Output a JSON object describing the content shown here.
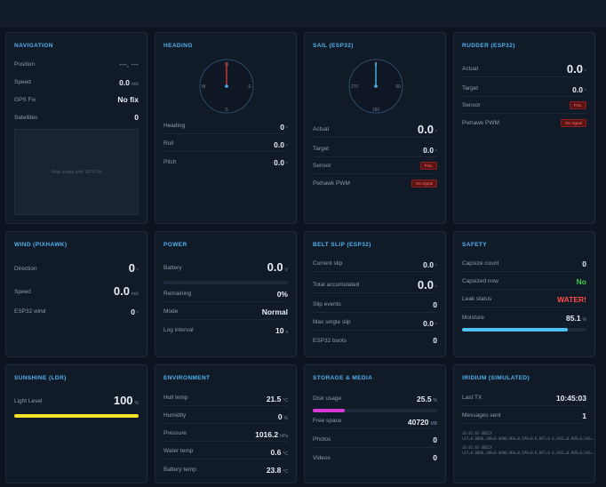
{
  "navigation": {
    "title": "NAVIGATION",
    "rows": [
      {
        "label": "Position",
        "value": "---, ---"
      },
      {
        "label": "Speed",
        "value": "0.0",
        "unit": "m/s"
      },
      {
        "label": "GPS Fix",
        "value": "No fix"
      },
      {
        "label": "Satellites",
        "value": "0"
      }
    ],
    "map_placeholder": "Map loads with GPS fix"
  },
  "heading": {
    "title": "HEADING",
    "compass": {
      "n": "N",
      "e": "E",
      "s": "S",
      "w": "W",
      "needle_deg": 0
    },
    "rows": [
      {
        "label": "Heading",
        "value": "0",
        "unit": "°"
      },
      {
        "label": "Roll",
        "value": "0.0",
        "unit": "°"
      },
      {
        "label": "Pitch",
        "value": "0.0",
        "unit": "°"
      }
    ]
  },
  "sail": {
    "title": "SAIL (ESP32)",
    "compass": {
      "top": "0",
      "right": "90",
      "bottom": "180",
      "left": "270",
      "needle_deg": 0
    },
    "rows": [
      {
        "label": "Actual",
        "value": "0.0",
        "unit": "°"
      },
      {
        "label": "Target",
        "value": "0.0",
        "unit": "°"
      },
      {
        "label": "Sensor",
        "badge": "FAIL"
      },
      {
        "label": "Pixhawk PWM",
        "badge": "No signal"
      }
    ]
  },
  "rudder": {
    "title": "RUDDER (ESP32)",
    "rows": [
      {
        "label": "Actual",
        "value": "0.0",
        "unit": "°"
      },
      {
        "label": "Target",
        "value": "0.0",
        "unit": "°"
      },
      {
        "label": "Sensor",
        "badge": "FAIL"
      },
      {
        "label": "Pixhawk PWM",
        "badge": "No signal"
      }
    ]
  },
  "wind": {
    "title": "WIND (PIXHAWK)",
    "rows": [
      {
        "label": "Direction",
        "value": "0",
        "unit": "°"
      },
      {
        "label": "Speed",
        "value": "0.0",
        "unit": "m/s"
      },
      {
        "label": "ESP32 wind",
        "value": "0",
        "unit": "°"
      }
    ]
  },
  "power": {
    "title": "POWER",
    "battery_label": "Battery",
    "battery_value": "0.0",
    "battery_unit": "V",
    "battery_fraction": 0,
    "rows": [
      {
        "label": "Remaining",
        "value": "0%"
      },
      {
        "label": "Mode",
        "value": "Normal"
      },
      {
        "label": "Log interval",
        "value": "10",
        "unit": "s"
      }
    ]
  },
  "belt_slip": {
    "title": "BELT SLIP (ESP32)",
    "rows": [
      {
        "label": "Current slip",
        "value": "0.0",
        "unit": "°"
      },
      {
        "label": "Total accumulated",
        "value": "0.0",
        "unit": "°"
      },
      {
        "label": "Slip events",
        "value": "0"
      },
      {
        "label": "Max single slip",
        "value": "0.0",
        "unit": "°"
      },
      {
        "label": "ESP32 boots",
        "value": "0"
      }
    ]
  },
  "safety": {
    "title": "SAFETY",
    "rows": [
      {
        "label": "Capsize count",
        "value": "0"
      },
      {
        "label": "Capsized now",
        "value": "No"
      },
      {
        "label": "Leak status",
        "value": "WATER!"
      },
      {
        "label": "Moisture",
        "value": "85.1",
        "unit": "%"
      }
    ],
    "moisture_fraction": 0.851,
    "colors": {
      "ok": "#3fcf4f",
      "alert": "#ff4d4d",
      "bar": "#4fc3f7"
    }
  },
  "sunshine": {
    "title": "SUNSHINE (LDR)",
    "label": "Light Level",
    "value": "100",
    "unit": "%",
    "fraction": 1.0,
    "bar_color": "#f5e02a"
  },
  "environment": {
    "title": "ENVIRONMENT",
    "rows": [
      {
        "label": "Hull temp",
        "value": "21.5",
        "unit": "°C"
      },
      {
        "label": "Humidity",
        "value": "0",
        "unit": "%"
      },
      {
        "label": "Pressure",
        "value": "1016.2",
        "unit": "hPa"
      },
      {
        "label": "Water temp",
        "value": "0.6",
        "unit": "°C"
      },
      {
        "label": "Battery temp",
        "value": "23.8",
        "unit": "°C"
      }
    ]
  },
  "storage": {
    "title": "STORAGE & MEDIA",
    "disk_label": "Disk usage",
    "disk_value": "25.5",
    "disk_unit": "%",
    "disk_fraction": 0.255,
    "bar_color": "#d83ad8",
    "rows": [
      {
        "label": "Free space",
        "value": "40720",
        "unit": "MB"
      },
      {
        "label": "Photos",
        "value": "0"
      },
      {
        "label": "Videos",
        "value": "0"
      }
    ]
  },
  "iridium": {
    "title": "IRIDIUM (SIMULATED)",
    "rows": [
      {
        "label": "Last TX",
        "value": "10:45:03"
      },
      {
        "label": "Messages sent",
        "value": "1"
      }
    ],
    "log": [
      "10:45:03 SBDIX LAT=0.0000,LON=0.0000,HDG=0,SPD=0.0,BAT=0.0,SAIL=0,RUD=0,LKE=...",
      "10:45:03 SBDIX LAT=0.0000,LON=0.0000,HDG=0,SPD=0.0,BAT=0.0,SAIL=0,RUD=0,LKE=..."
    ]
  }
}
